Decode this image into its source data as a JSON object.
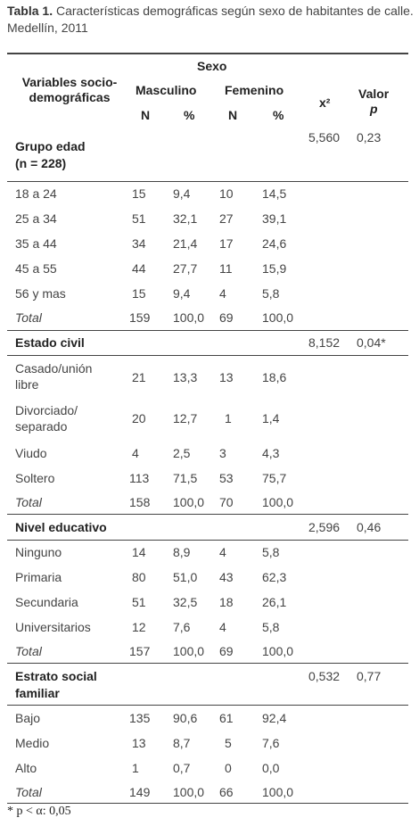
{
  "caption": {
    "label": "Tabla 1.",
    "text": " Características demográficas según sexo de habitantes de calle. Medellín, 2011"
  },
  "header": {
    "variables_line1": "Variables socio-",
    "variables_line2": "demográficas",
    "sexo": "Sexo",
    "masculino": "Masculino",
    "femenino": "Femenino",
    "n_m": "N",
    "pct_m": "%",
    "n_f": "N",
    "pct_f": "%",
    "x2": "x²",
    "valor_line1": "Valor",
    "valor_line2": "p"
  },
  "groups": {
    "edad": {
      "title_line1": "Grupo edad",
      "title_line2": "(n = 228)",
      "x2": "5,560",
      "p": "0,23",
      "rows": [
        {
          "label": "18 a 24",
          "nm": "15",
          "pm": "9,4",
          "nf": "10",
          "pf": "14,5"
        },
        {
          "label": "25 a 34",
          "nm": "51",
          "pm": "32,1",
          "nf": "27",
          "pf": "39,1"
        },
        {
          "label": "35 a 44",
          "nm": "34",
          "pm": "21,4",
          "nf": "17",
          "pf": "24,6"
        },
        {
          "label": "45 a 55",
          "nm": "44",
          "pm": "27,7",
          "nf": "11",
          "pf": "15,9"
        },
        {
          "label": "56 y mas",
          "nm": "15",
          "pm": "9,4",
          "nf": "4",
          "pf": "5,8"
        },
        {
          "label": "Total",
          "nm": "159",
          "pm": "100,0",
          "nf": "69",
          "pf": "100,0"
        }
      ]
    },
    "civil": {
      "title": "Estado civil",
      "x2": "8,152",
      "p": "0,04*",
      "rows": [
        {
          "label1": "Casado/unión",
          "label2": "libre",
          "nm": "21",
          "pm": "13,3",
          "nf": "13",
          "pf": "18,6"
        },
        {
          "label1": "Divorciado/",
          "label2": "separado",
          "nm": "20",
          "pm": "12,7",
          "nf": "1",
          "pf": "1,4"
        },
        {
          "label": "Viudo",
          "nm": "4",
          "pm": "2,5",
          "nf": "3",
          "pf": "4,3"
        },
        {
          "label": "Soltero",
          "nm": "113",
          "pm": "71,5",
          "nf": "53",
          "pf": "75,7"
        },
        {
          "label": "Total",
          "nm": "158",
          "pm": "100,0",
          "nf": "70",
          "pf": "100,0"
        }
      ]
    },
    "educ": {
      "title": "Nivel educativo",
      "x2": "2,596",
      "p": "0,46",
      "rows": [
        {
          "label": "Ninguno",
          "nm": "14",
          "pm": "8,9",
          "nf": "4",
          "pf": "5,8"
        },
        {
          "label": "Primaria",
          "nm": "80",
          "pm": "51,0",
          "nf": "43",
          "pf": "62,3"
        },
        {
          "label": "Secundaria",
          "nm": "51",
          "pm": "32,5",
          "nf": "18",
          "pf": "26,1"
        },
        {
          "label": "Universitarios",
          "nm": "12",
          "pm": "7,6",
          "nf": "4",
          "pf": "5,8"
        },
        {
          "label": "Total",
          "nm": "157",
          "pm": "100,0",
          "nf": "69",
          "pf": "100,0"
        }
      ]
    },
    "estrato": {
      "title_line1": "Estrato social",
      "title_line2": "familiar",
      "x2": "0,532",
      "p": "0,77",
      "rows": [
        {
          "label": "Bajo",
          "nm": "135",
          "pm": "90,6",
          "nf": "61",
          "pf": "92,4"
        },
        {
          "label": "Medio",
          "nm": "13",
          "pm": "8,7",
          "nf": "5",
          "pf": "7,6"
        },
        {
          "label": "Alto",
          "nm": "1",
          "pm": "0,7",
          "nf": "0",
          "pf": "0,0"
        },
        {
          "label": "Total",
          "nm": "149",
          "pm": "100,0",
          "nf": "66",
          "pf": "100,0"
        }
      ]
    }
  },
  "footnote": "* p < α: 0,05"
}
